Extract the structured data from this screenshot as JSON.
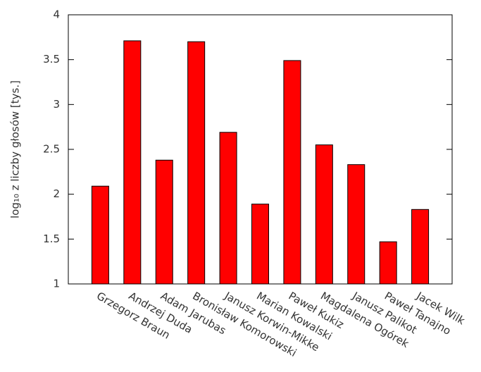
{
  "chart_data": {
    "type": "bar",
    "ylabel": "log₁₀ z liczby głosów [tys.]",
    "categories": [
      "Grzegorz Braun",
      "Andrzej Duda",
      "Adam Jarubas",
      "Bronisław Komorowski",
      "Janusz Korwin-Mikke",
      "Marian Kowalski",
      "Paweł Kukiz",
      "Magdalena Ogórek",
      "Janusz Palikot",
      "Paweł Tanajno",
      "Jacek Wilk"
    ],
    "values": [
      2.09,
      3.71,
      2.38,
      3.7,
      2.69,
      1.89,
      3.49,
      2.55,
      2.33,
      1.47,
      1.83
    ],
    "color": "#ff0000",
    "ylim": [
      1,
      4
    ],
    "yticks": [
      1,
      1.5,
      2,
      2.5,
      3,
      3.5,
      4
    ],
    "grid": false
  }
}
